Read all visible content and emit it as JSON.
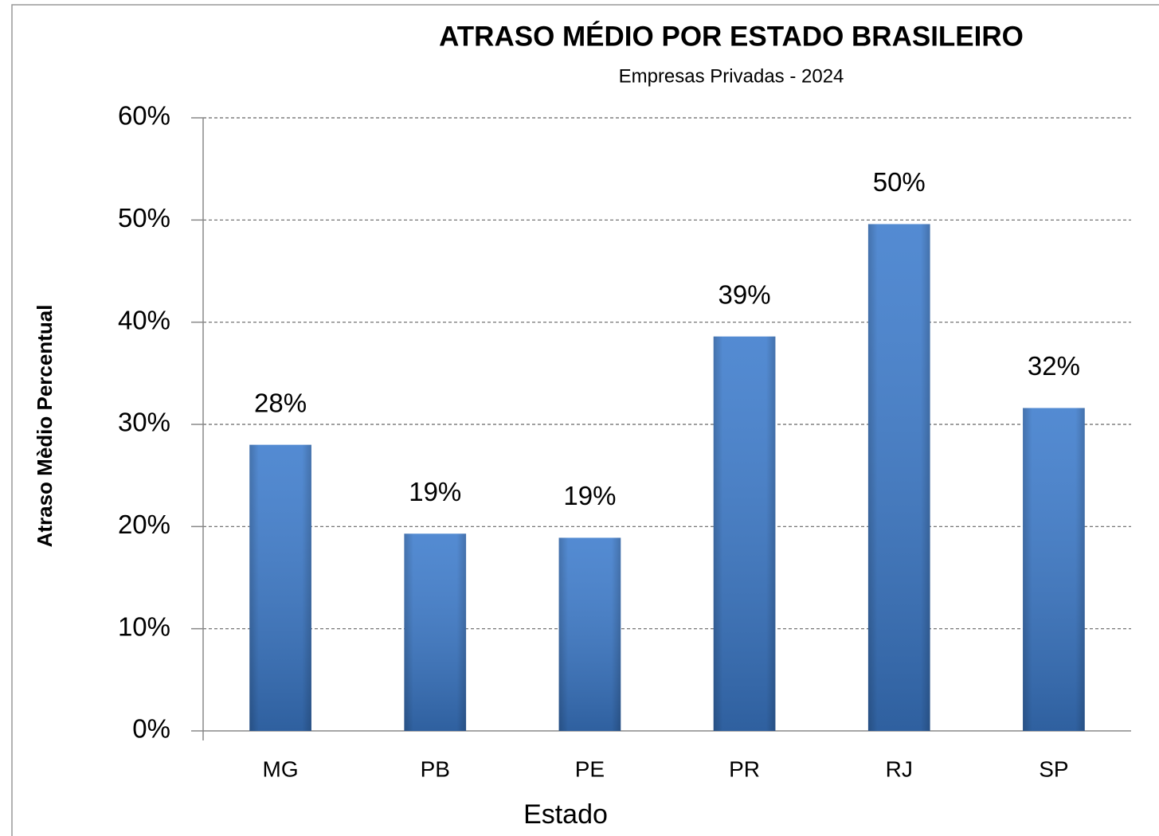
{
  "chart_data": {
    "type": "bar",
    "title": "ATRASO MÉDIO POR ESTADO BRASILEIRO",
    "subtitle": "Empresas Privadas - 2024",
    "x_label": "Estado",
    "y_label": "Atraso Mèdio Percentual",
    "categories": [
      "MG",
      "PB",
      "PE",
      "PR",
      "RJ",
      "SP"
    ],
    "values": [
      28.0,
      19.3,
      18.9,
      38.6,
      49.6,
      31.6
    ],
    "value_labels": [
      "28%",
      "19%",
      "19%",
      "39%",
      "50%",
      "32%"
    ],
    "color": "#3c7bcc",
    "ylim": [
      0,
      60
    ],
    "yticks": [
      {
        "value": 0,
        "label": "0%"
      },
      {
        "value": 10,
        "label": "10%"
      },
      {
        "value": 20,
        "label": "20%"
      },
      {
        "value": 30,
        "label": "30%"
      },
      {
        "value": 40,
        "label": "40%"
      },
      {
        "value": 50,
        "label": "50%"
      },
      {
        "value": 60,
        "label": "60%"
      }
    ],
    "grid": true
  }
}
